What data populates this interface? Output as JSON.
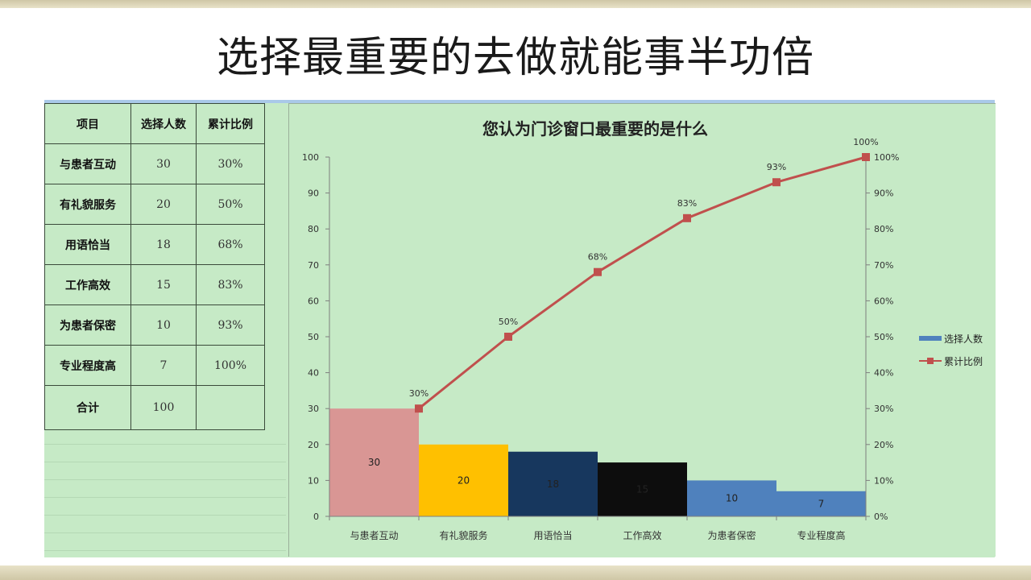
{
  "slide_title": "选择最重要的去做就能事半功倍",
  "table": {
    "headers": [
      "项目",
      "选择人数",
      "累计比例"
    ],
    "rows": [
      [
        "与患者互动",
        "30",
        "30%"
      ],
      [
        "有礼貌服务",
        "20",
        "50%"
      ],
      [
        "用语恰当",
        "18",
        "68%"
      ],
      [
        "工作高效",
        "15",
        "83%"
      ],
      [
        "为患者保密",
        "10",
        "93%"
      ],
      [
        "专业程度高",
        "7",
        "100%"
      ]
    ],
    "total": [
      "合计",
      "100",
      ""
    ]
  },
  "chart_data": {
    "type": "bar",
    "title": "您认为门诊窗口最重要的是什么",
    "categories": [
      "与患者互动",
      "有礼貌服务",
      "用语恰当",
      "工作高效",
      "为患者保密",
      "专业程度高"
    ],
    "series": [
      {
        "name": "选择人数",
        "type": "bar",
        "values": [
          30,
          20,
          18,
          15,
          10,
          7
        ],
        "axis": "left",
        "colors": [
          "#d99694",
          "#ffc000",
          "#17375e",
          "#0d0d0d",
          "#4f81bd",
          "#4f81bd"
        ],
        "color": "#4f81bd"
      },
      {
        "name": "累计比例",
        "type": "line",
        "values": [
          30,
          50,
          68,
          83,
          93,
          100
        ],
        "axis": "right",
        "labels": [
          "30%",
          "50%",
          "68%",
          "83%",
          "93%",
          "100%"
        ],
        "color": "#c0504d"
      }
    ],
    "ylim": [
      0,
      100
    ],
    "yticks": [
      0,
      10,
      20,
      30,
      40,
      50,
      60,
      70,
      80,
      90,
      100
    ],
    "y2lim": [
      0,
      100
    ],
    "y2ticks": [
      "0%",
      "10%",
      "20%",
      "30%",
      "40%",
      "50%",
      "60%",
      "70%",
      "80%",
      "90%",
      "100%"
    ],
    "legend": "right",
    "grid": false
  }
}
